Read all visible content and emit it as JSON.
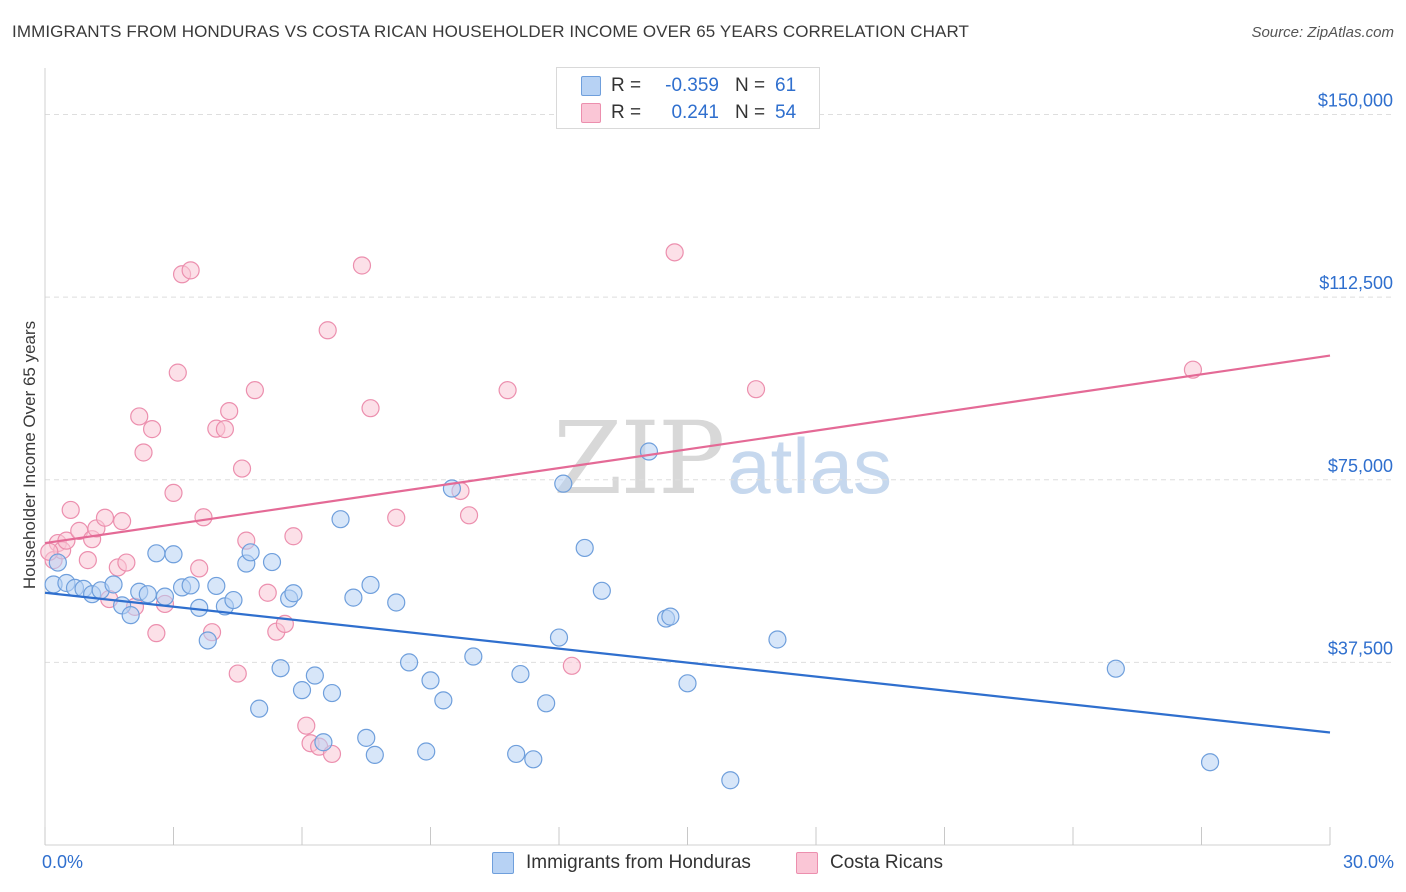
{
  "title": "IMMIGRANTS FROM HONDURAS VS COSTA RICAN HOUSEHOLDER INCOME OVER 65 YEARS CORRELATION CHART",
  "source": "Source: ZipAtlas.com",
  "watermark": {
    "zip": "ZIP",
    "atlas": "atlas"
  },
  "legend_top": {
    "rows": [
      {
        "r_label": "R =",
        "r_value": "-0.359",
        "n_label": "N =",
        "n_value": "61"
      },
      {
        "r_label": "R =",
        "r_value": "0.241",
        "n_label": "N =",
        "n_value": "54"
      }
    ]
  },
  "colors": {
    "blue_fill": "#b7d2f4",
    "blue_stroke": "#6f9fdc",
    "blue_line": "#2f6fce",
    "pink_fill": "#fac6d6",
    "pink_stroke": "#ec8fae",
    "pink_line": "#e46a96",
    "axis_label": "#2f6fce",
    "grid": "#dedede"
  },
  "chart_data": {
    "type": "scatter",
    "ylabel": "Householder Income Over 65 years",
    "xlim": [
      0,
      30
    ],
    "ylim": [
      0,
      157500
    ],
    "x_tick_labels": [
      "0.0%",
      "30.0%"
    ],
    "y_ticks": [
      37500,
      75000,
      112500,
      150000
    ],
    "y_tick_labels": [
      "$37,500",
      "$75,000",
      "$112,500",
      "$150,000"
    ],
    "grid": "horizontal dashed",
    "legend_placement": "bottom-center",
    "series": [
      {
        "name": "Immigrants from Honduras",
        "color": "#b7d2f4",
        "trend": {
          "x": [
            0,
            30
          ],
          "y": [
            51800,
            23100
          ]
        },
        "points": [
          [
            0.2,
            53500
          ],
          [
            0.3,
            58000
          ],
          [
            0.5,
            53800
          ],
          [
            0.7,
            52800
          ],
          [
            0.9,
            52600
          ],
          [
            1.1,
            51500
          ],
          [
            1.3,
            52300
          ],
          [
            1.6,
            53500
          ],
          [
            1.8,
            49200
          ],
          [
            2.0,
            47200
          ],
          [
            2.2,
            52000
          ],
          [
            2.4,
            51500
          ],
          [
            2.6,
            59900
          ],
          [
            2.8,
            51000
          ],
          [
            3.0,
            59700
          ],
          [
            3.2,
            52900
          ],
          [
            3.4,
            53300
          ],
          [
            3.6,
            48700
          ],
          [
            3.8,
            42000
          ],
          [
            4.0,
            53200
          ],
          [
            4.2,
            49000
          ],
          [
            4.4,
            50300
          ],
          [
            4.7,
            57800
          ],
          [
            4.8,
            60100
          ],
          [
            5.0,
            28000
          ],
          [
            5.3,
            58100
          ],
          [
            5.5,
            36300
          ],
          [
            5.7,
            50600
          ],
          [
            5.8,
            51700
          ],
          [
            6.0,
            31800
          ],
          [
            6.3,
            34800
          ],
          [
            6.5,
            21100
          ],
          [
            6.7,
            31200
          ],
          [
            6.9,
            66900
          ],
          [
            7.2,
            50800
          ],
          [
            7.5,
            22000
          ],
          [
            7.6,
            53400
          ],
          [
            7.7,
            18500
          ],
          [
            8.2,
            49800
          ],
          [
            8.5,
            37500
          ],
          [
            8.9,
            19200
          ],
          [
            9.0,
            33800
          ],
          [
            9.3,
            29700
          ],
          [
            9.5,
            73200
          ],
          [
            10.0,
            38700
          ],
          [
            11.0,
            18700
          ],
          [
            11.1,
            35100
          ],
          [
            11.4,
            17600
          ],
          [
            11.7,
            29100
          ],
          [
            12.0,
            42600
          ],
          [
            12.1,
            74200
          ],
          [
            12.6,
            61000
          ],
          [
            13.0,
            52200
          ],
          [
            14.1,
            80800
          ],
          [
            14.5,
            46500
          ],
          [
            14.6,
            46900
          ],
          [
            15.0,
            33200
          ],
          [
            16.0,
            13300
          ],
          [
            17.1,
            42200
          ],
          [
            25.0,
            36200
          ],
          [
            27.2,
            17000
          ]
        ]
      },
      {
        "name": "Costa Ricans",
        "color": "#fac6d6",
        "trend": {
          "x": [
            0,
            30
          ],
          "y": [
            62000,
            100500
          ]
        },
        "points": [
          [
            0.2,
            58500
          ],
          [
            0.3,
            62000
          ],
          [
            0.4,
            60500
          ],
          [
            0.5,
            62500
          ],
          [
            0.6,
            68800
          ],
          [
            0.8,
            64500
          ],
          [
            1.0,
            58500
          ],
          [
            1.1,
            62800
          ],
          [
            1.2,
            65000
          ],
          [
            1.4,
            67200
          ],
          [
            1.5,
            50500
          ],
          [
            1.7,
            57000
          ],
          [
            1.8,
            66500
          ],
          [
            1.9,
            58000
          ],
          [
            2.1,
            48900
          ],
          [
            2.2,
            88000
          ],
          [
            2.3,
            80600
          ],
          [
            2.5,
            85400
          ],
          [
            2.6,
            43500
          ],
          [
            2.8,
            49500
          ],
          [
            3.0,
            72300
          ],
          [
            3.1,
            97000
          ],
          [
            3.2,
            117200
          ],
          [
            3.4,
            118000
          ],
          [
            3.6,
            56800
          ],
          [
            3.7,
            67300
          ],
          [
            3.9,
            43700
          ],
          [
            4.0,
            85500
          ],
          [
            4.2,
            85400
          ],
          [
            4.3,
            89100
          ],
          [
            4.5,
            35200
          ],
          [
            4.6,
            77300
          ],
          [
            4.7,
            62500
          ],
          [
            4.9,
            93400
          ],
          [
            5.2,
            51800
          ],
          [
            5.4,
            43800
          ],
          [
            5.6,
            45400
          ],
          [
            5.8,
            63400
          ],
          [
            6.1,
            24500
          ],
          [
            6.2,
            20900
          ],
          [
            6.4,
            20200
          ],
          [
            6.6,
            105700
          ],
          [
            6.7,
            18700
          ],
          [
            7.4,
            119000
          ],
          [
            7.6,
            89700
          ],
          [
            8.2,
            67200
          ],
          [
            9.7,
            72700
          ],
          [
            9.9,
            67700
          ],
          [
            10.8,
            93400
          ],
          [
            12.3,
            36800
          ],
          [
            14.7,
            121700
          ],
          [
            16.6,
            93600
          ],
          [
            26.8,
            97600
          ],
          [
            0.1,
            60200
          ]
        ]
      }
    ]
  },
  "legend_bottom": {
    "items": [
      {
        "label": "Immigrants from Honduras"
      },
      {
        "label": "Costa Ricans"
      }
    ]
  }
}
